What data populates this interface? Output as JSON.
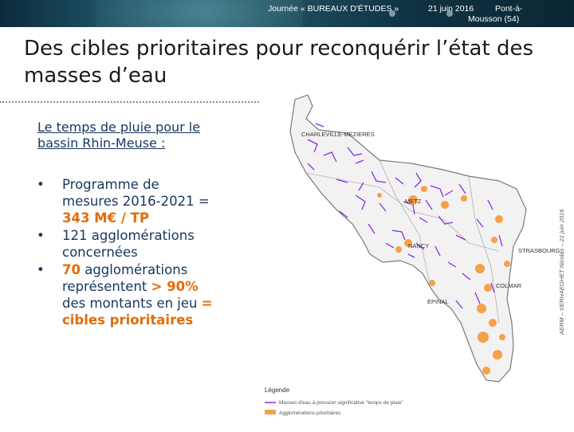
{
  "header": {
    "event": "Journée « BUREAUX D'ÉTUDES »",
    "date": "21 juin 2016",
    "place_line1": "Pont-à-",
    "place_line2": "Mousson (54)"
  },
  "title": "Des cibles prioritaires pour reconquérir l’état des masses d’eau",
  "subtitle": "Le temps de pluie pour le bassin Rhin-Meuse :",
  "bullets": [
    {
      "pre": "Programme de mesures 2016-2021 = ",
      "hl": "343 M€ / TP",
      "post": "",
      "hl2": ""
    },
    {
      "pre": "121 agglomérations concernées",
      "hl": "",
      "post": "",
      "hl2": ""
    },
    {
      "pre": "",
      "hl": "70",
      "post": " agglomérations représentent ",
      "hl2": "> 90%",
      "post2": " des montants en jeu ",
      "hl3": "= cibles prioritaires"
    }
  ],
  "bullet_char": "•",
  "map": {
    "cities": [
      "CHARLEVILLE-MEZIERES",
      "METZ",
      "NANCY",
      "STRASBOURG",
      "EPINAL",
      "COLMAR"
    ],
    "legend_title": "Légende",
    "legend_items": [
      {
        "label": "Masses d'eau à pression significative \"temps de pluie\"",
        "color": "#8b2be2"
      },
      {
        "label": "Agglomérations prioritaires",
        "color": "#f6a04a"
      }
    ],
    "credit": "AERM – VERHAEGHET Nicolas – 21 juin 2016"
  },
  "colors": {
    "accent": "#e36c09",
    "text_blue": "#17365d",
    "header_bg": "#1d4f63"
  }
}
